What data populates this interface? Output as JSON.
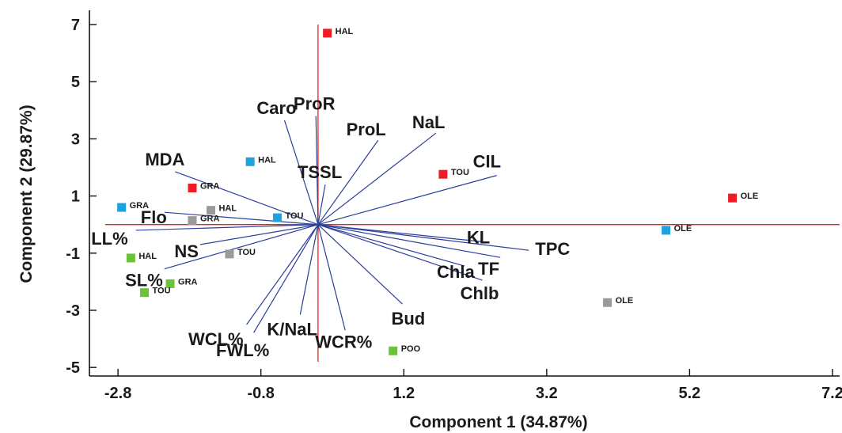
{
  "chart_data": {
    "type": "scatter",
    "subtype": "pca-biplot",
    "xlabel": "Component 1 (34.87%)",
    "ylabel": "Component 2 (29.87%)",
    "xlim": [
      -3.2,
      7.3
    ],
    "ylim": [
      -5.3,
      7.5
    ],
    "x_ticks": [
      -2.8,
      -0.8,
      1.2,
      3.2,
      5.2,
      7.2
    ],
    "x_tick_labels": [
      "-2.8",
      "-0.8",
      "1.2",
      "3.2",
      "5.2",
      "7.2"
    ],
    "y_ticks": [
      -5,
      -3,
      -1,
      1,
      3,
      5,
      7
    ],
    "y_tick_labels": [
      "-5",
      "-3",
      "-1",
      "1",
      "3",
      "5",
      "7"
    ],
    "grid": false,
    "reference_lines": {
      "color": "#e8221c",
      "x": 0.0,
      "y": 0.0
    },
    "vector_color": "#2b3f9a",
    "series_colors": {
      "red": "#ee1c24",
      "blue": "#1ba3dd",
      "gray": "#9a9a9a",
      "green": "#6cc23a"
    },
    "points": [
      {
        "x": 0.13,
        "y": 6.7,
        "label": "HAL",
        "color": "red"
      },
      {
        "x": -1.76,
        "y": 1.28,
        "label": "GRA",
        "color": "red"
      },
      {
        "x": 1.75,
        "y": 1.76,
        "label": "TOU",
        "color": "red"
      },
      {
        "x": 5.8,
        "y": 0.93,
        "label": "OLE",
        "color": "red"
      },
      {
        "x": -0.95,
        "y": 2.2,
        "label": "HAL",
        "color": "blue"
      },
      {
        "x": -2.75,
        "y": 0.6,
        "label": "GRA",
        "color": "blue"
      },
      {
        "x": -0.57,
        "y": 0.24,
        "label": "TOU",
        "color": "blue"
      },
      {
        "x": 4.87,
        "y": -0.2,
        "label": "OLE",
        "color": "blue"
      },
      {
        "x": -1.5,
        "y": 0.5,
        "label": "HAL",
        "color": "gray"
      },
      {
        "x": -1.76,
        "y": 0.14,
        "label": "GRA",
        "color": "gray"
      },
      {
        "x": -1.24,
        "y": -1.03,
        "label": "TOU",
        "color": "gray"
      },
      {
        "x": 4.05,
        "y": -2.73,
        "label": "OLE",
        "color": "gray"
      },
      {
        "x": -2.62,
        "y": -1.17,
        "label": "HAL",
        "color": "green"
      },
      {
        "x": -2.07,
        "y": -2.07,
        "label": "GRA",
        "color": "green"
      },
      {
        "x": -2.43,
        "y": -2.38,
        "label": "TOU",
        "color": "green"
      },
      {
        "x": 1.05,
        "y": -4.42,
        "label": "POO",
        "color": "green"
      }
    ],
    "vectors": [
      {
        "label": "ProR",
        "x": -0.03,
        "y": 3.8
      },
      {
        "label": "Caro",
        "x": -0.47,
        "y": 3.65
      },
      {
        "label": "ProL",
        "x": 0.84,
        "y": 2.95
      },
      {
        "label": "NaL",
        "x": 1.65,
        "y": 3.2
      },
      {
        "label": "CIL",
        "x": 2.5,
        "y": 1.72
      },
      {
        "label": "TSSL",
        "x": 0.1,
        "y": 1.4
      },
      {
        "label": "MDA",
        "x": -2.0,
        "y": 1.85
      },
      {
        "label": "Flo",
        "x": -2.15,
        "y": 0.43
      },
      {
        "label": "LL%",
        "x": -2.55,
        "y": -0.2
      },
      {
        "label": "NS",
        "x": -1.65,
        "y": -0.7
      },
      {
        "label": "SL%",
        "x": -2.15,
        "y": -1.55
      },
      {
        "label": "WCL%",
        "x": -1.0,
        "y": -3.5
      },
      {
        "label": "FWL%",
        "x": -0.9,
        "y": -3.78
      },
      {
        "label": "K/NaL",
        "x": -0.25,
        "y": -3.15
      },
      {
        "label": "WCR%",
        "x": 0.38,
        "y": -3.7
      },
      {
        "label": "Bud",
        "x": 1.18,
        "y": -2.78
      },
      {
        "label": "Chlb",
        "x": 2.3,
        "y": -1.95
      },
      {
        "label": "Chla",
        "x": 2.05,
        "y": -1.45
      },
      {
        "label": "TF",
        "x": 2.55,
        "y": -1.15
      },
      {
        "label": "TPC",
        "x": 2.95,
        "y": -0.9
      },
      {
        "label": "KL",
        "x": 2.3,
        "y": -0.6
      }
    ]
  }
}
